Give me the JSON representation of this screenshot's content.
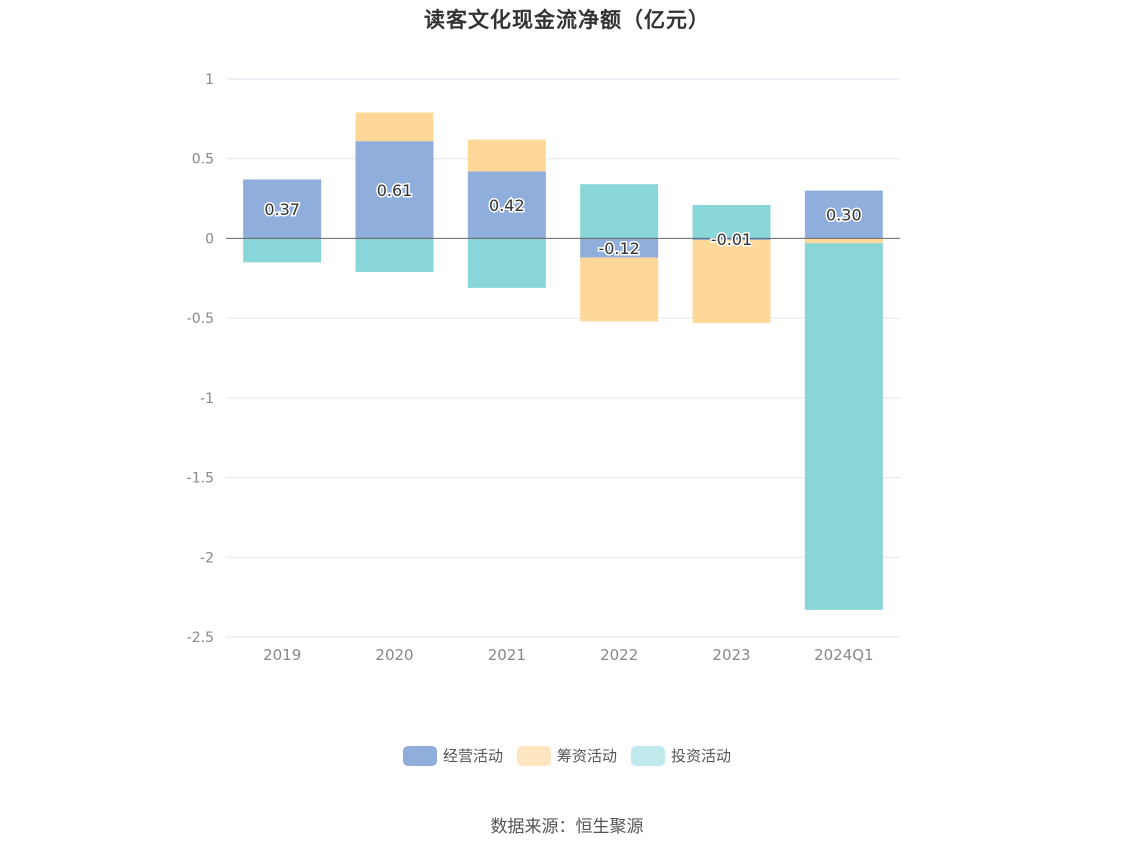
{
  "chart_data": {
    "type": "bar",
    "stacked": true,
    "title": "读客文化现金流净额（亿元）",
    "categories": [
      "2019",
      "2020",
      "2021",
      "2022",
      "2023",
      "2024Q1"
    ],
    "series": [
      {
        "name": "经营活动",
        "color": "#8FAEDB",
        "values": [
          0.37,
          0.61,
          0.42,
          -0.12,
          -0.01,
          0.3
        ]
      },
      {
        "name": "筹资活动",
        "color": "#FDD899",
        "values": [
          0.0,
          0.18,
          0.2,
          -0.4,
          -0.52,
          -0.03
        ]
      },
      {
        "name": "投资活动",
        "color": "#89D6D9",
        "values": [
          -0.15,
          -0.21,
          -0.31,
          0.34,
          0.21,
          -2.3
        ]
      }
    ],
    "data_labels": [
      "0.37",
      "0.61",
      "0.42",
      "-0.12",
      "-0.01",
      "0.30"
    ],
    "ylim": [
      -2.5,
      1
    ],
    "y_ticks": [
      "1",
      "0.5",
      "0",
      "-0.5",
      "-1",
      "-1.5",
      "-2",
      "-2.5"
    ],
    "y_tick_values": [
      1,
      0.5,
      0,
      -0.5,
      -1,
      -1.5,
      -2,
      -2.5
    ],
    "grid": true,
    "legend_position": "bottom-center",
    "legend": [
      {
        "label": "经营活动",
        "color": "#8FAEDB"
      },
      {
        "label": "筹资活动",
        "color": "#FFE6C2"
      },
      {
        "label": "投资活动",
        "color": "#BFE9EA"
      }
    ]
  },
  "source": "数据来源：恒生聚源"
}
